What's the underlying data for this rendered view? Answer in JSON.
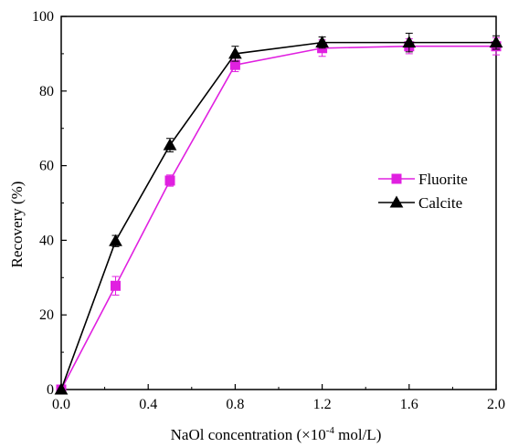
{
  "chart_data": {
    "type": "line",
    "title": "",
    "xlabel_main": "NaOl concentration (×10",
    "xlabel_sup": "-4",
    "xlabel_tail": " mol/L)",
    "ylabel": "Recovery (%)",
    "xlim": [
      0,
      2.0
    ],
    "ylim": [
      0,
      100
    ],
    "x_ticks": [
      "0.0",
      "0.4",
      "0.8",
      "1.2",
      "1.6",
      "2.0"
    ],
    "x_tick_values": [
      0,
      0.4,
      0.8,
      1.2,
      1.6,
      2.0
    ],
    "y_ticks": [
      "0",
      "20",
      "40",
      "60",
      "80",
      "100"
    ],
    "y_tick_values": [
      0,
      20,
      40,
      60,
      80,
      100
    ],
    "grid": false,
    "legend_position": "center-right",
    "series": [
      {
        "name": "Fluorite",
        "color": "#e020e0",
        "marker": "square",
        "x": [
          0,
          0.25,
          0.5,
          0.8,
          1.2,
          1.6,
          2.0
        ],
        "y": [
          0,
          27.8,
          56.0,
          87.0,
          91.5,
          92.0,
          92.0
        ],
        "err": [
          0,
          2.5,
          1.5,
          1.8,
          2.2,
          2.0,
          2.3
        ]
      },
      {
        "name": "Calcite",
        "color": "#000000",
        "marker": "triangle",
        "x": [
          0,
          0.25,
          0.5,
          0.8,
          1.2,
          1.6,
          2.0
        ],
        "y": [
          0,
          39.8,
          65.5,
          90.0,
          93.0,
          93.0,
          93.0
        ],
        "err": [
          0,
          1.5,
          1.8,
          2.0,
          1.5,
          2.5,
          1.8
        ]
      }
    ]
  }
}
